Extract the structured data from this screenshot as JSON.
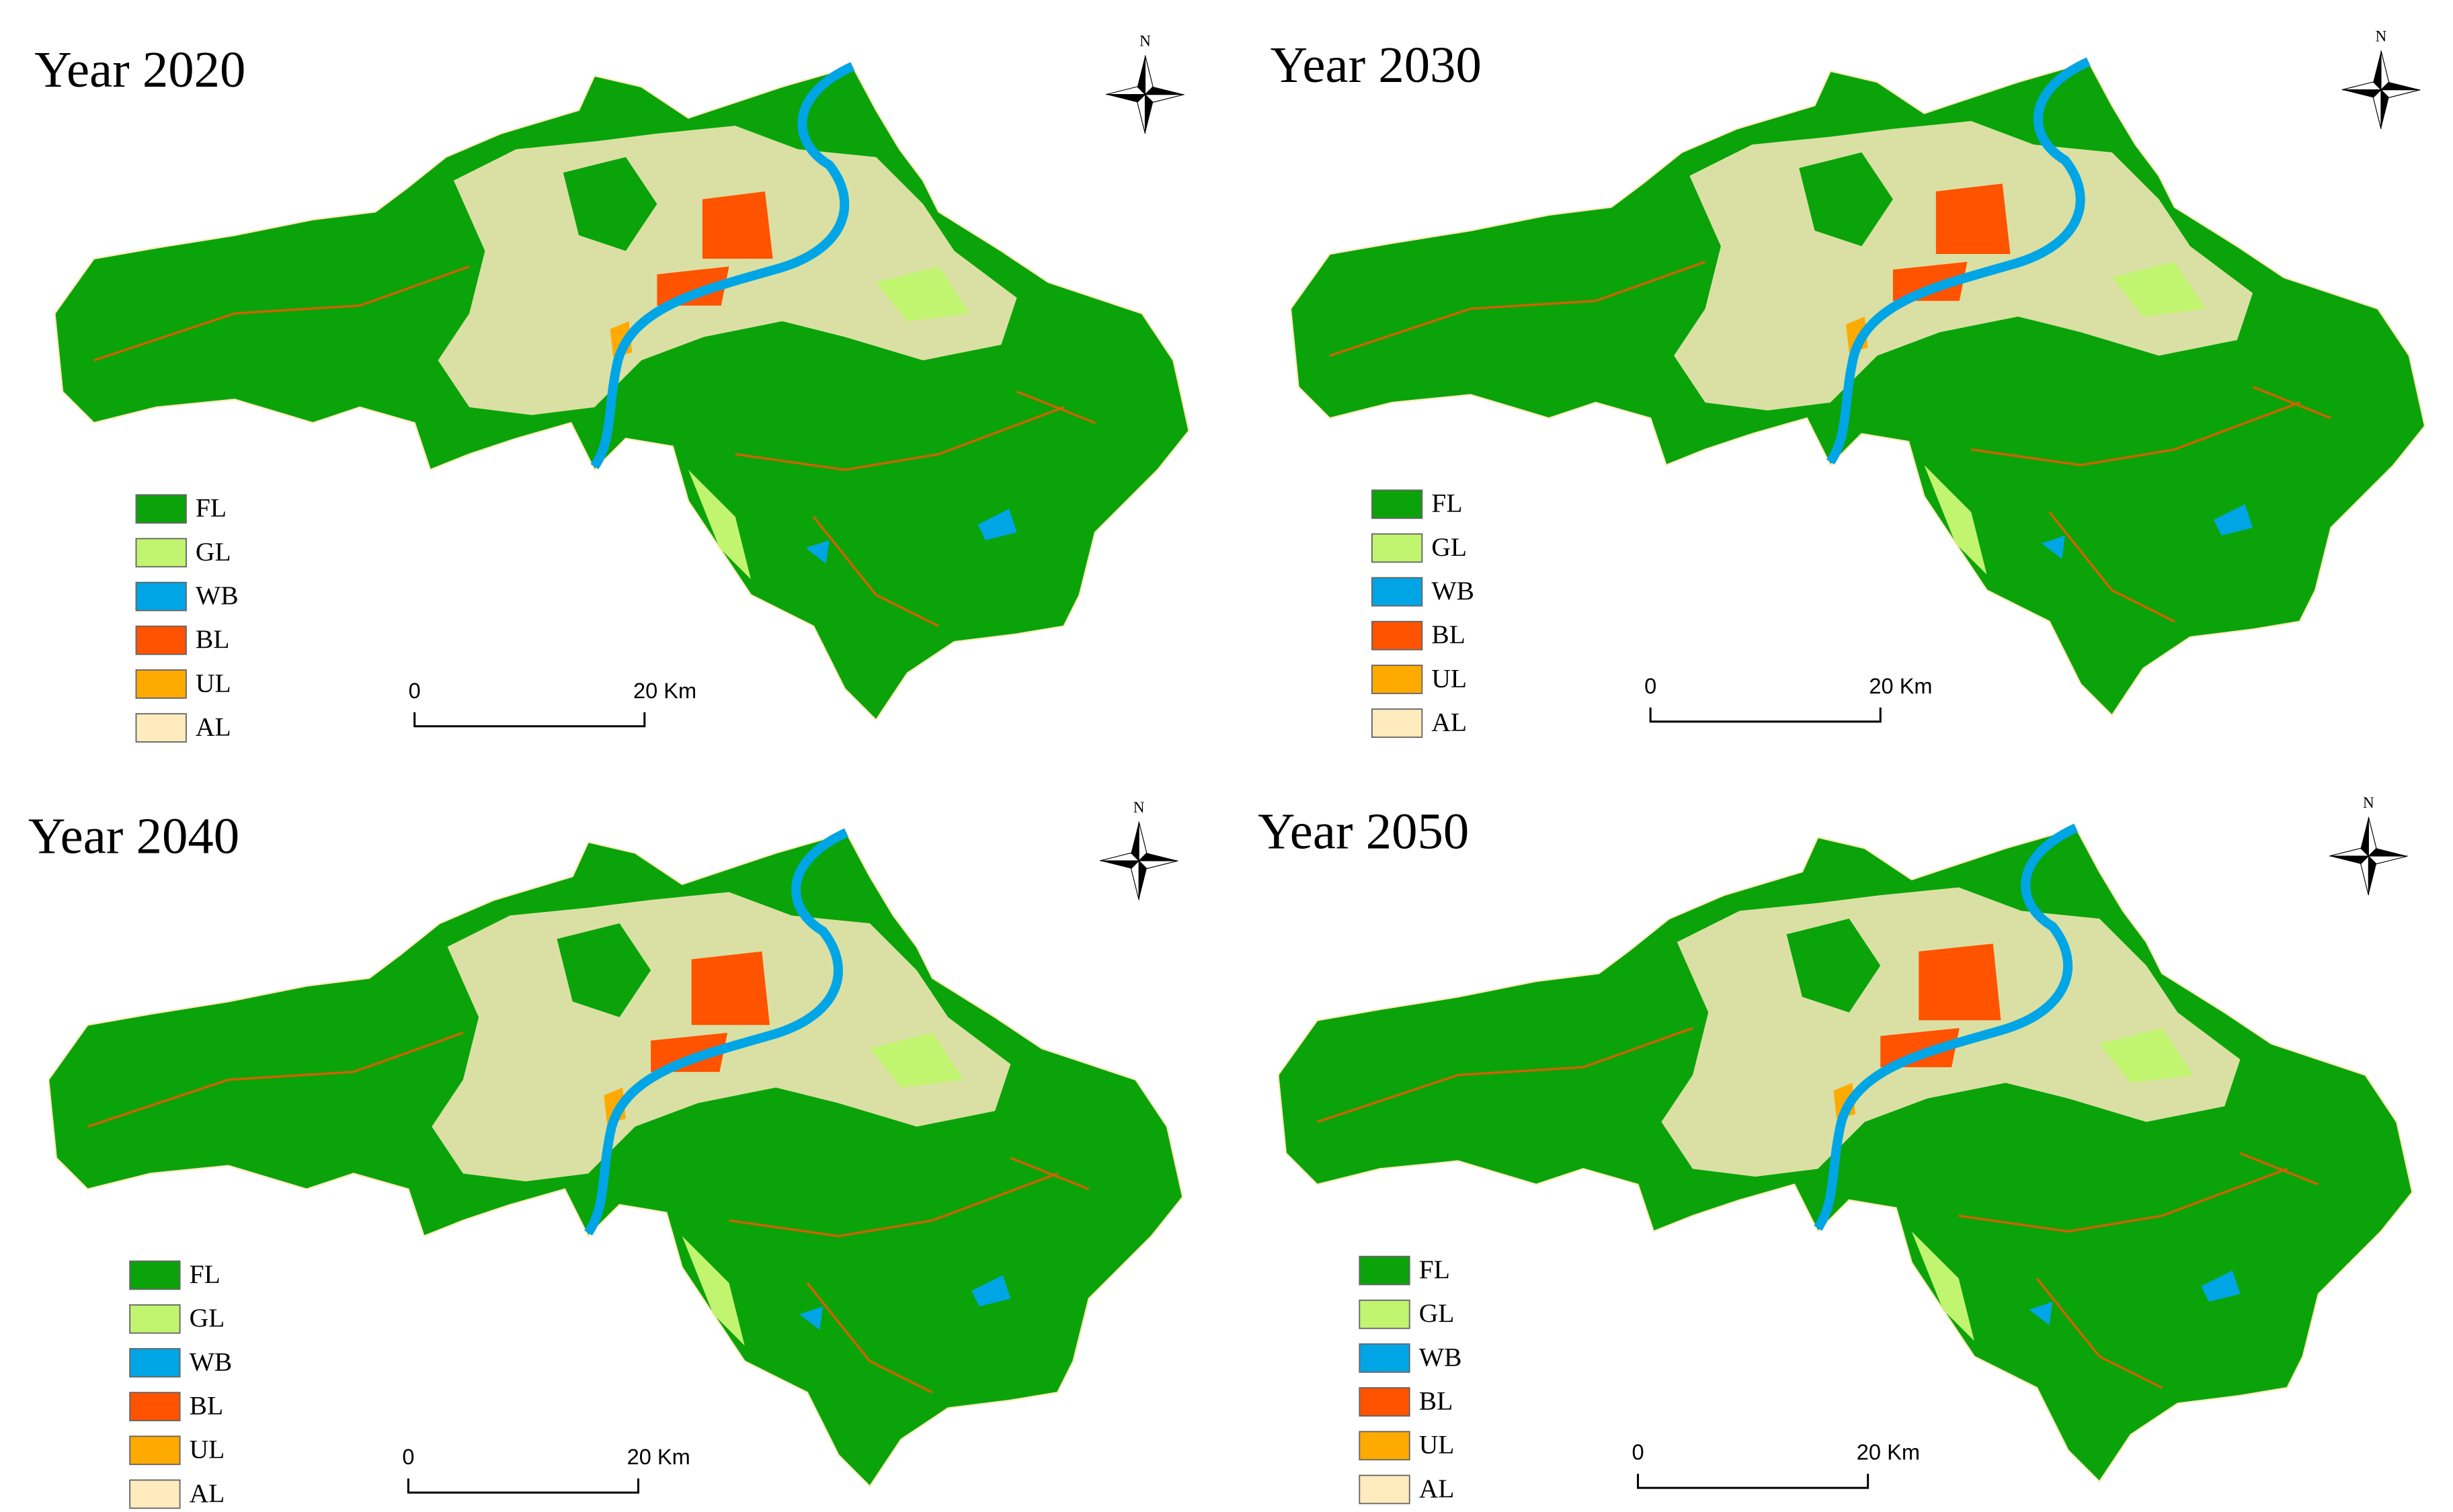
{
  "panels": [
    {
      "title": "Year 2020"
    },
    {
      "title": "Year 2030"
    },
    {
      "title": "Year 2040"
    },
    {
      "title": "Year 2050"
    }
  ],
  "legend": [
    {
      "label": "FL",
      "color": "#0ba30a"
    },
    {
      "label": "GL",
      "color": "#c2f56f"
    },
    {
      "label": "WB",
      "color": "#00a5e6"
    },
    {
      "label": "BL",
      "color": "#ff5300"
    },
    {
      "label": "UL",
      "color": "#ffaa00"
    },
    {
      "label": "AL",
      "color": "#ffebbe"
    }
  ],
  "scale_bar": {
    "start": "0",
    "end": "20 Km"
  },
  "north": "N"
}
